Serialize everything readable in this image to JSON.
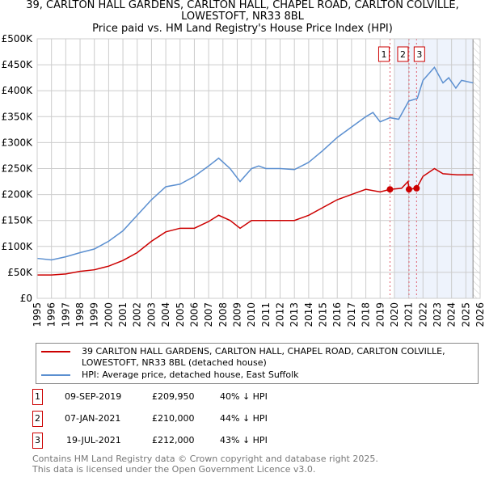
{
  "chart_data": {
    "type": "line",
    "title": "39, CARLTON HALL GARDENS, CARLTON HALL, CHAPEL ROAD, CARLTON COLVILLE, LOWESTOFT, NR33 8BL",
    "subtitle": "Price paid vs. HM Land Registry's House Price Index (HPI)",
    "xlim": [
      1995,
      2026
    ],
    "ylim": [
      0,
      500000
    ],
    "x_ticks": [
      "1995",
      "1996",
      "1997",
      "1998",
      "1999",
      "2000",
      "2001",
      "2002",
      "2003",
      "2004",
      "2005",
      "2006",
      "2007",
      "2008",
      "2009",
      "2010",
      "2011",
      "2012",
      "2013",
      "2014",
      "2015",
      "2016",
      "2017",
      "2018",
      "2019",
      "2020",
      "2021",
      "2022",
      "2023",
      "2024",
      "2025",
      "2026"
    ],
    "y_ticks": [
      "£0",
      "£50K",
      "£100K",
      "£150K",
      "£200K",
      "£250K",
      "£300K",
      "£350K",
      "£400K",
      "£450K",
      "£500K"
    ],
    "grid": true,
    "series": [
      {
        "name": "39 CARLTON HALL GARDENS, CARLTON HALL, CHAPEL ROAD, CARLTON COLVILLE, LOWESTOFT, NR33 8BL (detached house)",
        "color": "#cc0000",
        "x": [
          1995,
          1996,
          1997,
          1998,
          1999,
          2000,
          2001,
          2002,
          2003,
          2004,
          2005,
          2006,
          2007,
          2007.7,
          2008.5,
          2009.2,
          2010,
          2011,
          2012,
          2013,
          2014,
          2015,
          2016,
          2017,
          2018,
          2019,
          2019.69,
          2020.5,
          2020.95,
          2021.02,
          2021.55,
          2022,
          2022.8,
          2023.4,
          2024.4,
          2025.5
        ],
        "y": [
          45000,
          45000,
          47000,
          52000,
          55000,
          62000,
          73000,
          88000,
          110000,
          128000,
          135000,
          135000,
          148000,
          160000,
          150000,
          135000,
          150000,
          150000,
          150000,
          150000,
          160000,
          175000,
          190000,
          200000,
          210000,
          205000,
          209950,
          212000,
          225000,
          210000,
          212000,
          235000,
          250000,
          240000,
          238000,
          238000
        ]
      },
      {
        "name": "HPI: Average price, detached house, East Suffolk",
        "color": "#5b8fd0",
        "x": [
          1995,
          1996,
          1997,
          1998,
          1999,
          2000,
          2001,
          2002,
          2003,
          2004,
          2005,
          2006,
          2007,
          2007.7,
          2008.5,
          2009.2,
          2010,
          2010.5,
          2011,
          2012,
          2013,
          2014,
          2015,
          2016,
          2017,
          2018,
          2018.5,
          2019,
          2019.69,
          2020.3,
          2021,
          2021.6,
          2022,
          2022.8,
          2023.4,
          2023.8,
          2024.3,
          2024.7,
          2025.5
        ],
        "y": [
          77000,
          74000,
          80000,
          88000,
          95000,
          110000,
          130000,
          160000,
          190000,
          215000,
          220000,
          235000,
          255000,
          270000,
          250000,
          225000,
          250000,
          255000,
          250000,
          250000,
          248000,
          262000,
          285000,
          310000,
          330000,
          350000,
          358000,
          340000,
          348000,
          345000,
          380000,
          385000,
          420000,
          445000,
          415000,
          425000,
          405000,
          420000,
          415000
        ]
      }
    ],
    "sales": [
      {
        "id": "1",
        "date": "09-SEP-2019",
        "x": 2019.69,
        "price": "£209,950",
        "value": 209950,
        "hpi": "40% ↓ HPI"
      },
      {
        "id": "2",
        "date": "07-JAN-2021",
        "x": 2021.02,
        "price": "£210,000",
        "value": 210000,
        "hpi": "44% ↓ HPI"
      },
      {
        "id": "3",
        "date": "19-JUL-2021",
        "x": 2021.55,
        "price": "£212,000",
        "value": 212000,
        "hpi": "43% ↓ HPI"
      }
    ],
    "shaded_from": 2020.0,
    "hatched_from": 2025.5
  },
  "legend": {
    "red": "39 CARLTON HALL GARDENS, CARLTON HALL, CHAPEL ROAD, CARLTON COLVILLE, LOWESTOFT, NR33 8BL (detached house)",
    "blue": "HPI: Average price, detached house, East Suffolk"
  },
  "footer": [
    "Contains HM Land Registry data © Crown copyright and database right 2025.",
    "This data is licensed under the Open Government Licence v3.0."
  ]
}
